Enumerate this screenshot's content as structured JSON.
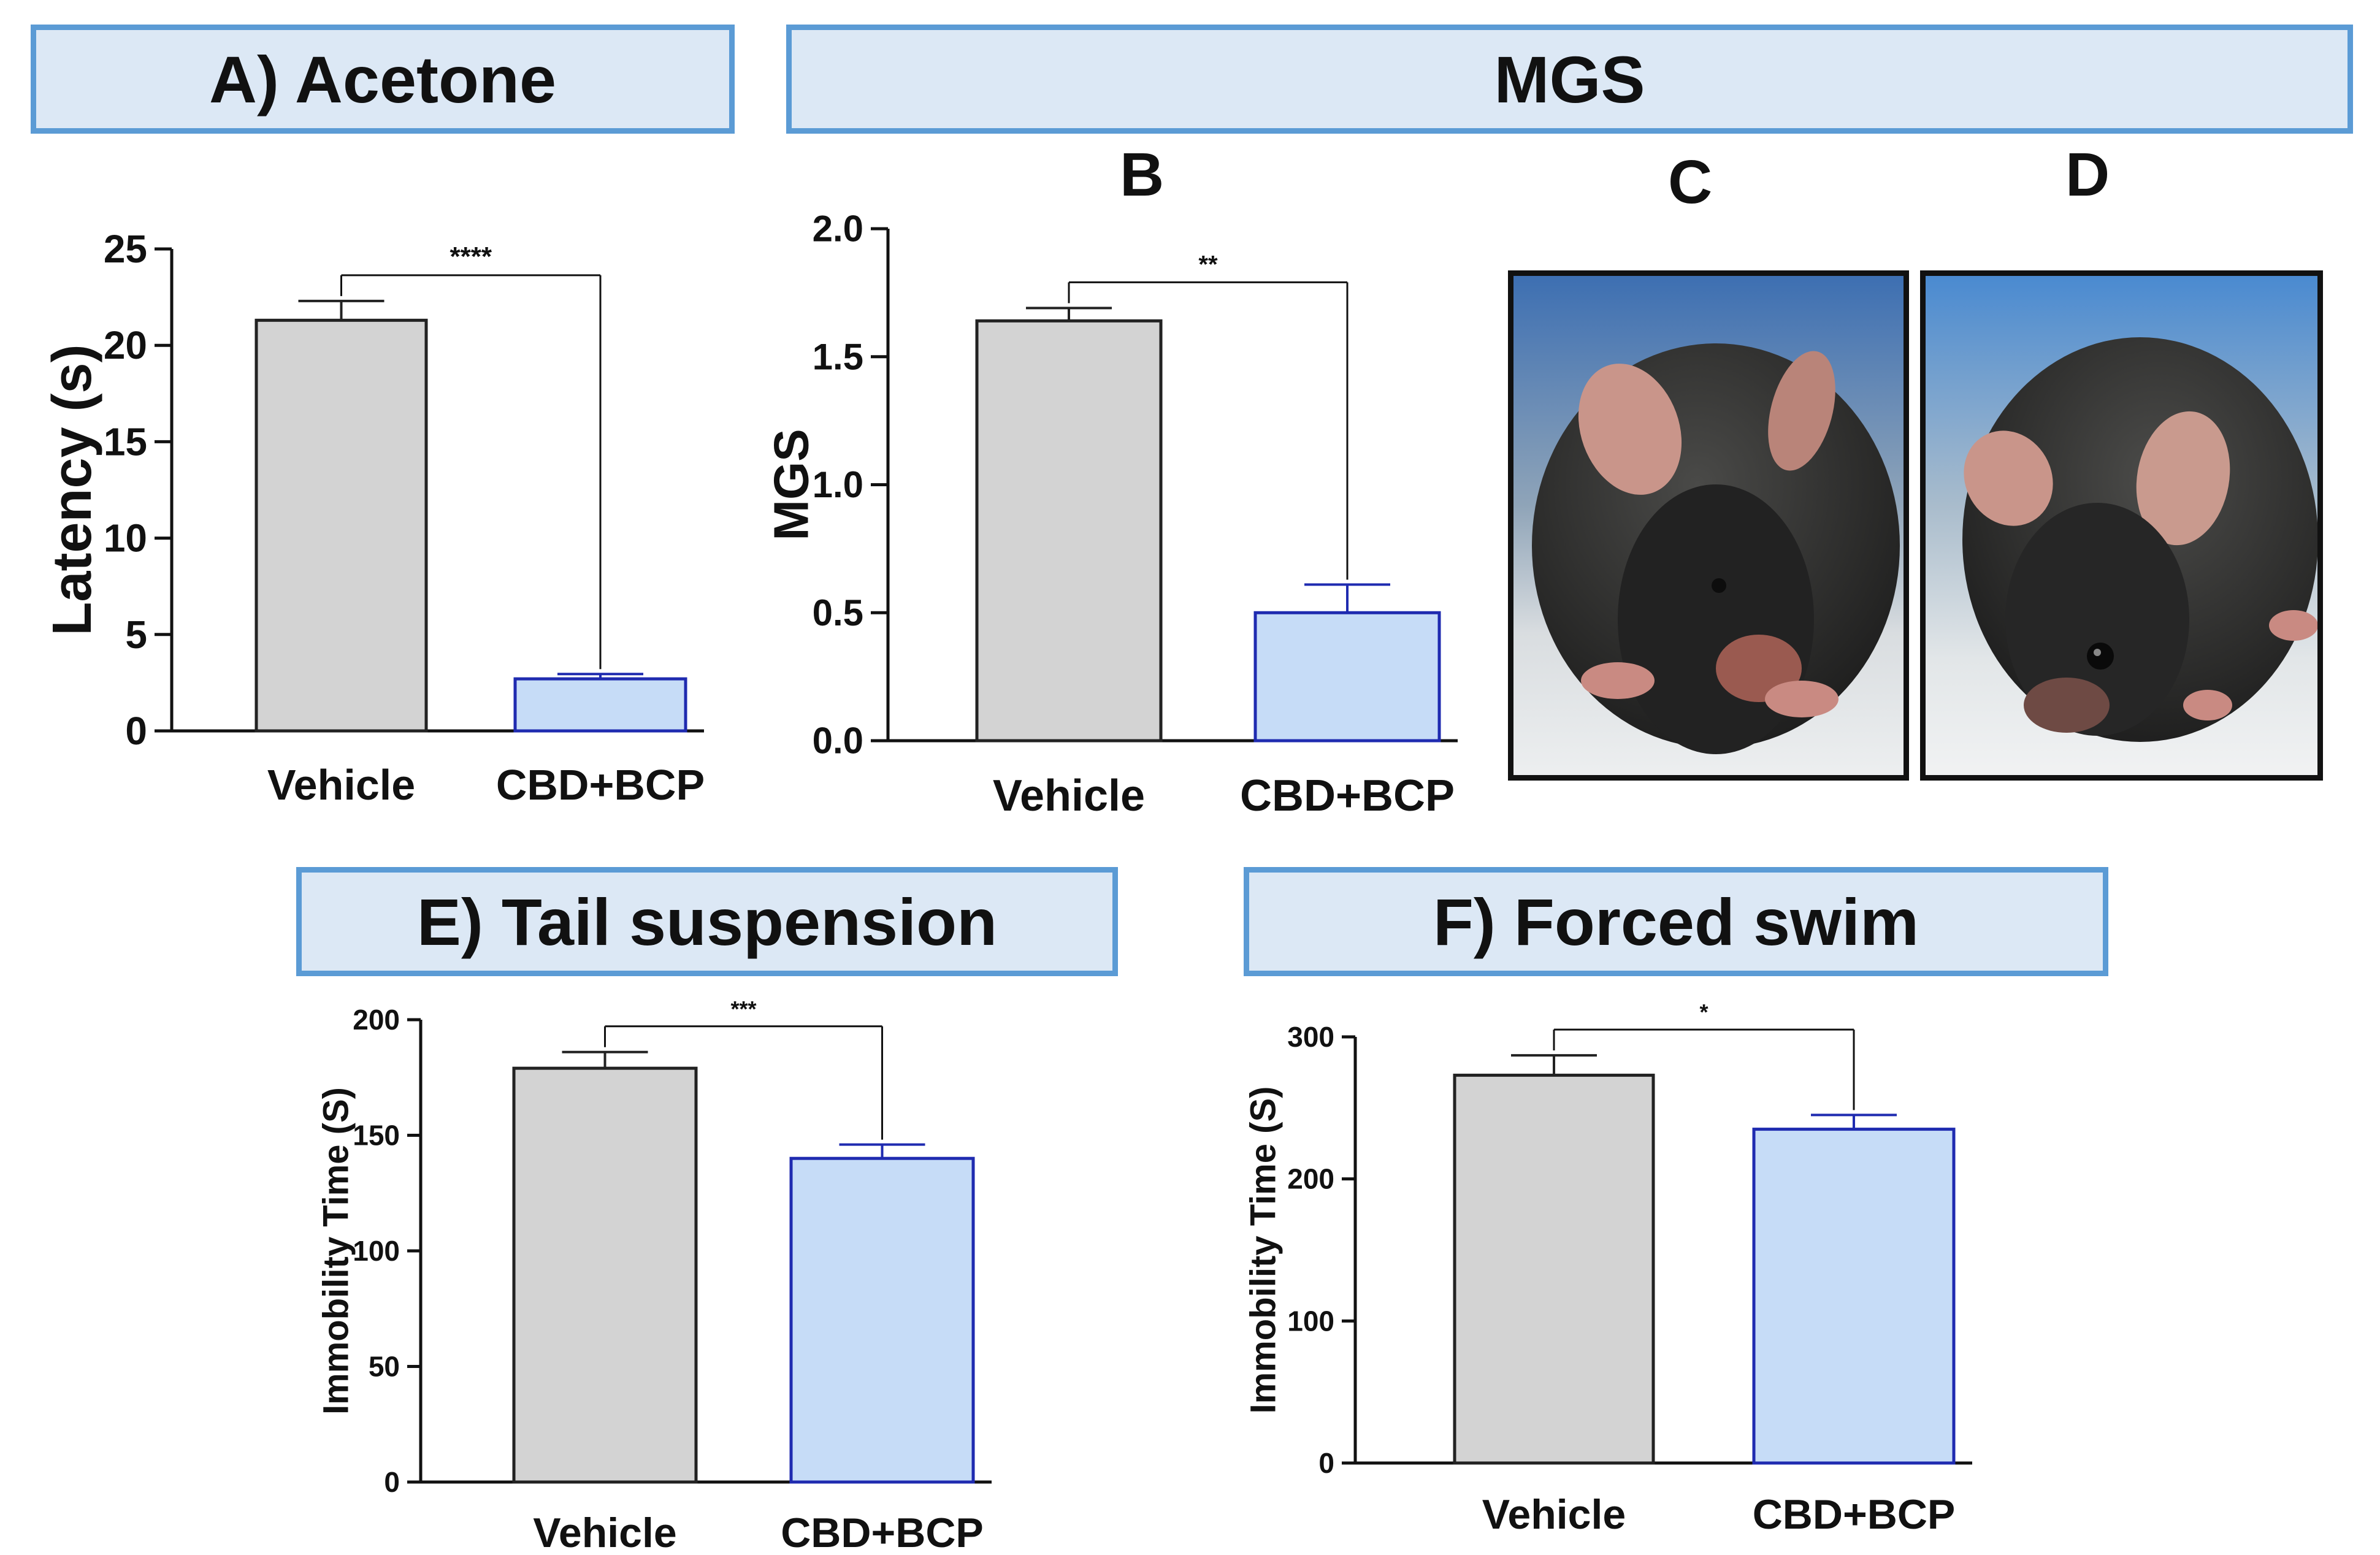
{
  "headers": {
    "a": "A) Acetone",
    "mgs": "MGS",
    "e": "E) Tail suspension",
    "f": "F) Forced swim"
  },
  "panel_letters": {
    "b": "B",
    "c": "C",
    "d": "D"
  },
  "photos": {
    "c": {
      "subject": "mouse-photo",
      "letter": "C"
    },
    "d": {
      "subject": "mouse-photo",
      "letter": "D"
    }
  },
  "colors": {
    "vehicle_fill": "#d3d3d3",
    "vehicle_stroke": "#222222",
    "treatment_fill": "#c6dcf7",
    "treatment_stroke": "#1f2bb0",
    "header_fill": "#dce8f5",
    "header_border": "#5b9bd5"
  },
  "chart_data": [
    {
      "id": "A",
      "type": "bar",
      "title": "A) Acetone",
      "categories": [
        "Vehicle",
        "CBD+BCP"
      ],
      "values": [
        21.3,
        2.7
      ],
      "errors": [
        1.0,
        0.25
      ],
      "ylabel": "Latency (s)",
      "ylim": [
        0,
        25
      ],
      "yticks": [
        0,
        5,
        10,
        15,
        20,
        25
      ],
      "significance": "****"
    },
    {
      "id": "B",
      "type": "bar",
      "title": "MGS",
      "categories": [
        "Vehicle",
        "CBD+BCP"
      ],
      "values": [
        1.64,
        0.5
      ],
      "errors": [
        0.05,
        0.11
      ],
      "ylabel": "MGS",
      "ylim": [
        0,
        2.0
      ],
      "yticks": [
        "0.0",
        "0.5",
        "1.0",
        "1.5",
        "2.0"
      ],
      "significance": "**"
    },
    {
      "id": "E",
      "type": "bar",
      "title": "E) Tail suspension",
      "categories": [
        "Vehicle",
        "CBD+BCP"
      ],
      "values": [
        179,
        140
      ],
      "errors": [
        7,
        6
      ],
      "ylabel": "Immobility Time (S)",
      "ylim": [
        0,
        200
      ],
      "yticks": [
        0,
        50,
        100,
        150,
        200
      ],
      "significance": "***"
    },
    {
      "id": "F",
      "type": "bar",
      "title": "F) Forced swim",
      "categories": [
        "Vehicle",
        "CBD+BCP"
      ],
      "values": [
        273,
        235
      ],
      "errors": [
        14,
        10
      ],
      "ylabel": "Immobility Time (S)",
      "ylim": [
        0,
        300
      ],
      "yticks": [
        0,
        100,
        200,
        300
      ],
      "significance": "*"
    }
  ]
}
